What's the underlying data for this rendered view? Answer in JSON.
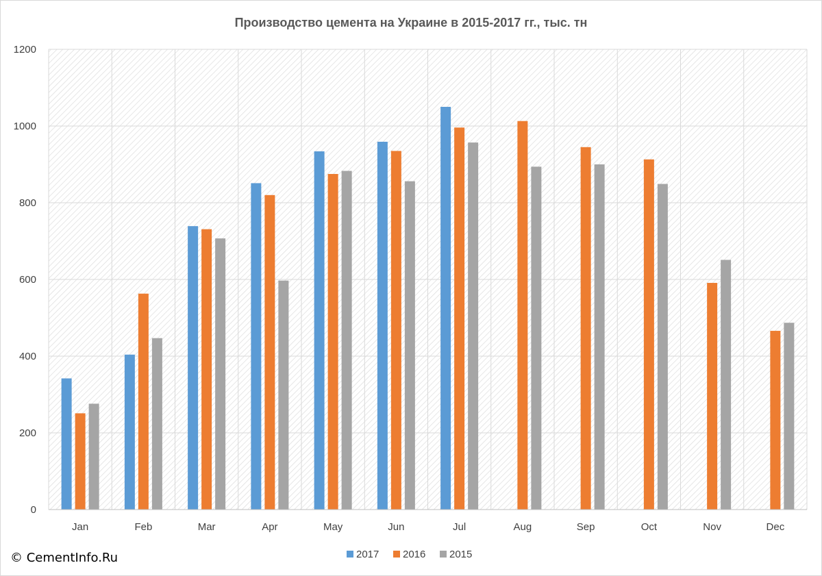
{
  "copyright": "© CementInfo.Ru",
  "colors": {
    "2017": "#5b9bd5",
    "2016": "#ed7d31",
    "2015": "#a5a5a5",
    "grid": "#d9d9d9",
    "hatch": "#dcdcdc"
  },
  "chart_data": {
    "type": "bar",
    "title": "Производство цемента на Украине в 2015-2017 гг., тыс. тн",
    "xlabel": "",
    "ylabel": "",
    "ylim": [
      0,
      1200
    ],
    "yticks": [
      0,
      200,
      400,
      600,
      800,
      1000,
      1200
    ],
    "grid": true,
    "background": "diagonal hatch",
    "legend_position": "bottom",
    "categories": [
      "Jan",
      "Feb",
      "Mar",
      "Apr",
      "May",
      "Jun",
      "Jul",
      "Aug",
      "Sep",
      "Oct",
      "Nov",
      "Dec"
    ],
    "series": [
      {
        "name": "2017",
        "color": "#5b9bd5",
        "values": [
          342,
          404,
          739,
          851,
          934,
          959,
          1050,
          null,
          null,
          null,
          null,
          null
        ]
      },
      {
        "name": "2016",
        "color": "#ed7d31",
        "values": [
          251,
          563,
          731,
          820,
          875,
          935,
          996,
          1013,
          945,
          913,
          591,
          466
        ]
      },
      {
        "name": "2015",
        "color": "#a5a5a5",
        "values": [
          276,
          447,
          707,
          597,
          883,
          856,
          957,
          894,
          900,
          849,
          651,
          487
        ]
      }
    ]
  }
}
